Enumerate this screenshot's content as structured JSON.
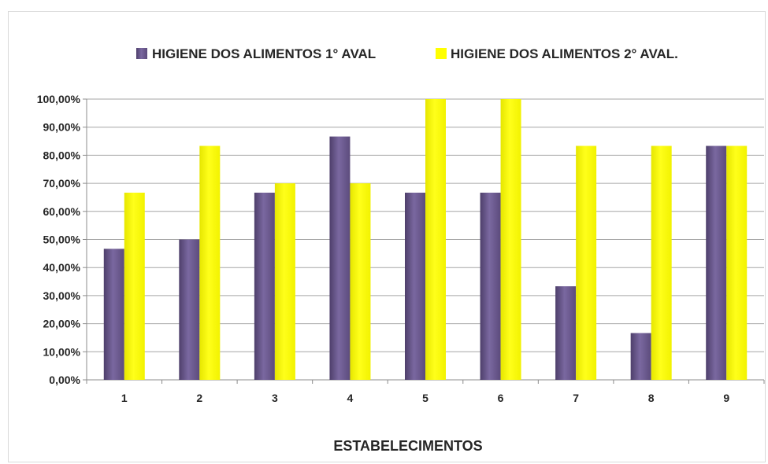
{
  "chart_data": {
    "type": "bar",
    "title": "",
    "xlabel": "ESTABELECIMENTOS",
    "ylabel": "",
    "categories": [
      "1",
      "2",
      "3",
      "4",
      "5",
      "6",
      "7",
      "8",
      "9"
    ],
    "series": [
      {
        "name": "HIGIENE DOS ALIMENTOS  1° AVAL",
        "color": "#6a5889",
        "values": [
          46.67,
          50.0,
          66.67,
          86.67,
          66.67,
          66.67,
          33.33,
          16.67,
          83.33
        ]
      },
      {
        "name": "HIGIENE DOS ALIMENTOS  2° AVAL.",
        "color": "#ffff00",
        "values": [
          66.67,
          83.33,
          70.0,
          70.0,
          100.0,
          100.0,
          83.33,
          83.33,
          83.33
        ]
      }
    ],
    "ylim": [
      0,
      100
    ],
    "yticks": [
      "0,00%",
      "10,00%",
      "20,00%",
      "30,00%",
      "40,00%",
      "50,00%",
      "60,00%",
      "70,00%",
      "80,00%",
      "90,00%",
      "100,00%"
    ],
    "grid": true,
    "legend_position": "top"
  }
}
